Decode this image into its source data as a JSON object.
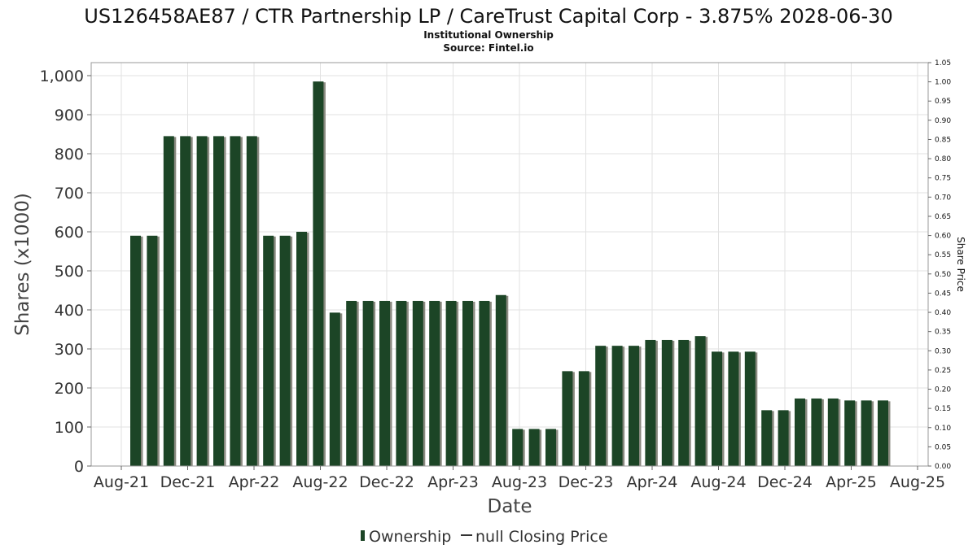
{
  "chart_data": {
    "type": "bar",
    "title": "US126458AE87 / CTR Partnership LP / CareTrust Capital Corp - 3.875% 2028-06-30",
    "subtitle_lines": [
      "Institutional Ownership",
      "Source: Fintel.io"
    ],
    "xlabel": "Date",
    "ylabel": "Shares (x1000)",
    "y2label": "Share Price",
    "ylim": [
      0,
      1000
    ],
    "y2lim": [
      0,
      1.05
    ],
    "y_ticks": [
      0,
      100,
      200,
      300,
      400,
      500,
      600,
      700,
      800,
      900,
      1000
    ],
    "y_tick_labels": [
      "0",
      "100",
      "200",
      "300",
      "400",
      "500",
      "600",
      "700",
      "800",
      "900",
      "1,000"
    ],
    "y2_ticks": [
      0,
      0.05,
      0.1,
      0.15,
      0.2,
      0.25,
      0.3,
      0.35,
      0.4,
      0.45,
      0.5,
      0.55,
      0.6,
      0.65,
      0.7,
      0.75,
      0.8,
      0.85,
      0.9,
      0.95,
      1.0,
      1.05
    ],
    "y2_tick_labels": [
      "0.00",
      "0.05",
      "0.10",
      "0.15",
      "0.20",
      "0.25",
      "0.30",
      "0.35",
      "0.40",
      "0.45",
      "0.50",
      "0.55",
      "0.60",
      "0.65",
      "0.70",
      "0.75",
      "0.80",
      "0.85",
      "0.90",
      "0.95",
      "1.00",
      "1.05"
    ],
    "x_tick_labels": [
      "Aug-21",
      "Dec-21",
      "Apr-22",
      "Aug-22",
      "Dec-22",
      "Apr-23",
      "Aug-23",
      "Dec-23",
      "Apr-24",
      "Aug-24",
      "Dec-24",
      "Apr-25",
      "Aug-25"
    ],
    "grid": true,
    "legend_position": "bottom",
    "legend": [
      "Ownership",
      "null Closing Price"
    ],
    "colors": {
      "bar": "#1c4526",
      "bar_shadow": "#8a8a80",
      "grid": "#e2e2e2",
      "frame": "#999999"
    },
    "series": [
      {
        "name": "Ownership",
        "values": [
          590,
          590,
          845,
          845,
          845,
          845,
          845,
          845,
          590,
          590,
          600,
          985,
          393,
          423,
          423,
          423,
          423,
          423,
          423,
          423,
          423,
          423,
          438,
          95,
          95,
          95,
          243,
          243,
          308,
          308,
          308,
          323,
          323,
          323,
          333,
          293,
          293,
          293,
          143,
          143,
          173,
          173,
          173,
          168,
          168,
          168
        ]
      }
    ]
  }
}
